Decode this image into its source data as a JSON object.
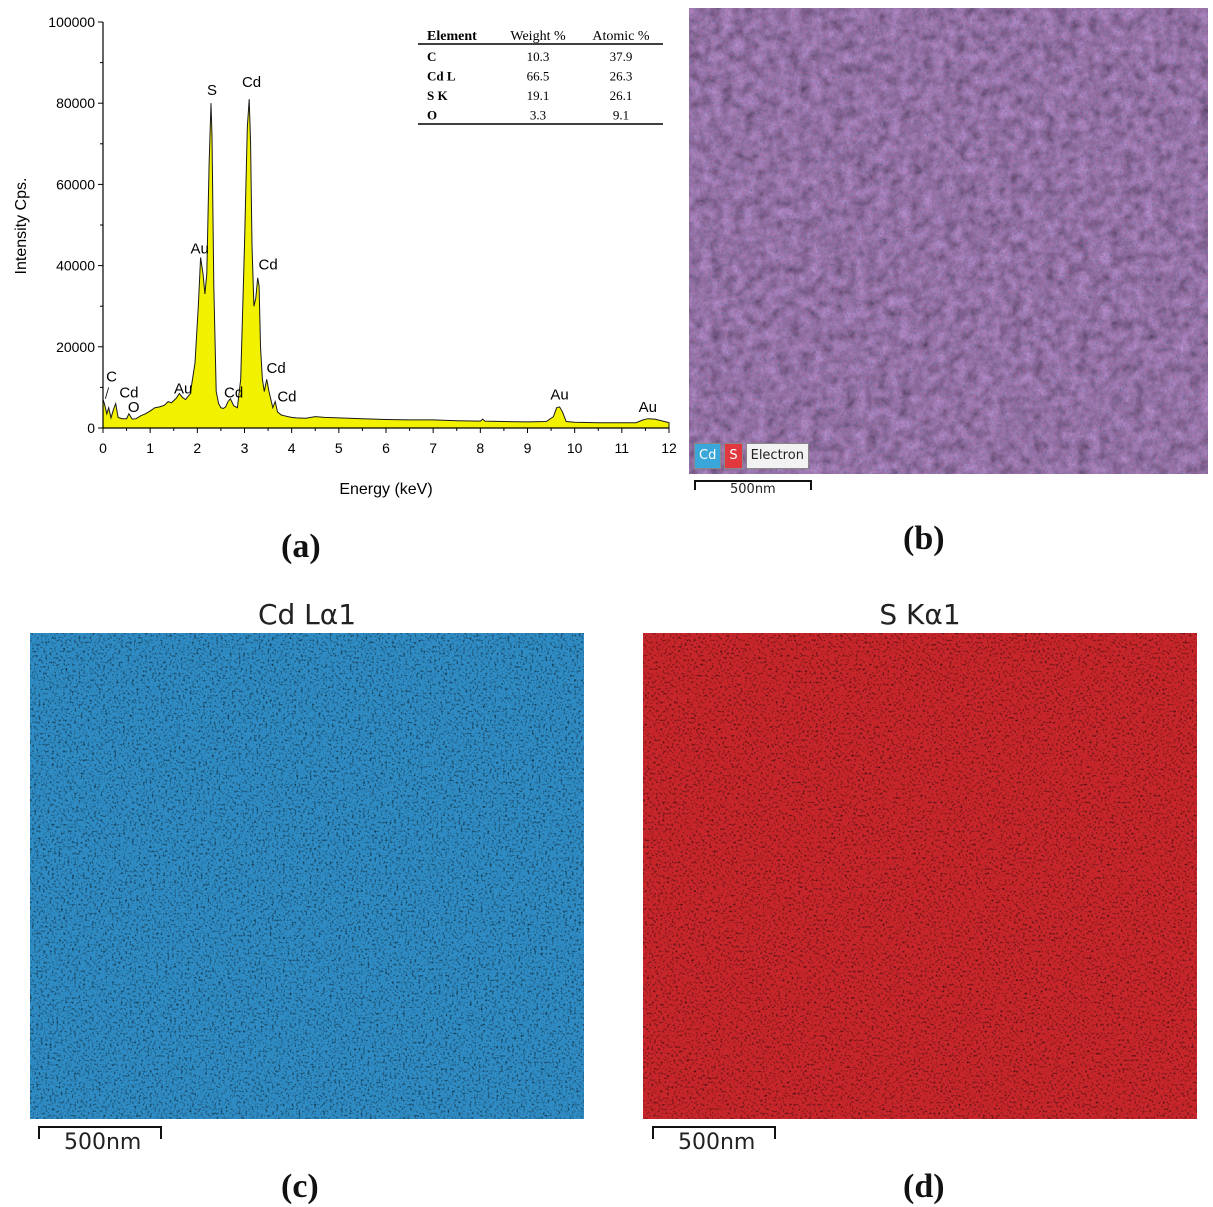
{
  "panel_labels": {
    "a": "(a)",
    "b": "(b)",
    "c": "(c)",
    "d": "(d)"
  },
  "chart_data": {
    "type": "line",
    "title": "",
    "xlabel": "Energy (keV)",
    "ylabel": "Intensity Cps.",
    "xlim": [
      0,
      12
    ],
    "ylim": [
      0,
      100000
    ],
    "x_ticks": [
      0,
      1,
      2,
      3,
      4,
      5,
      6,
      7,
      8,
      9,
      10,
      11,
      12
    ],
    "y_ticks": [
      0,
      20000,
      40000,
      60000,
      80000,
      100000
    ],
    "fill_color": "#f2f200",
    "grid": false,
    "series": [
      {
        "x": [
          0,
          0.03,
          0.08,
          0.12,
          0.17,
          0.22,
          0.27,
          0.32,
          0.4,
          0.5,
          0.55,
          0.62,
          0.7,
          0.8,
          0.9,
          1.0,
          1.1,
          1.2,
          1.3,
          1.38,
          1.45,
          1.55,
          1.62,
          1.68,
          1.75,
          1.85,
          1.95,
          2.02,
          2.07,
          2.12,
          2.16,
          2.2,
          2.25,
          2.29,
          2.31,
          2.35,
          2.4,
          2.45,
          2.5,
          2.55,
          2.6,
          2.65,
          2.7,
          2.77,
          2.85,
          2.92,
          3.0,
          3.06,
          3.1,
          3.13,
          3.16,
          3.2,
          3.24,
          3.28,
          3.31,
          3.34,
          3.38,
          3.42,
          3.47,
          3.52,
          3.56,
          3.6,
          3.65,
          3.7,
          3.78,
          3.85,
          3.92,
          4.0,
          4.1,
          4.3,
          4.5,
          4.7,
          5.0,
          5.5,
          6.0,
          6.5,
          7.0,
          7.5,
          8.0,
          8.05,
          8.1,
          8.5,
          9.0,
          9.4,
          9.55,
          9.62,
          9.68,
          9.74,
          9.82,
          10.0,
          10.5,
          11.0,
          11.3,
          11.45,
          11.55,
          11.7,
          12.0
        ],
        "y": [
          7000,
          6000,
          3500,
          5000,
          2500,
          4500,
          6000,
          2600,
          2300,
          2300,
          3500,
          2200,
          2300,
          3000,
          3500,
          4200,
          5000,
          5200,
          5600,
          6500,
          6200,
          7300,
          8500,
          7600,
          7000,
          8500,
          16000,
          30000,
          42000,
          38000,
          33000,
          38000,
          65000,
          80000,
          72000,
          35000,
          9000,
          6000,
          5000,
          4800,
          5200,
          6500,
          7200,
          5500,
          5000,
          12000,
          45000,
          74000,
          81000,
          70000,
          45000,
          30000,
          32000,
          37000,
          35000,
          20000,
          12000,
          9000,
          12000,
          9000,
          7000,
          5000,
          6500,
          4000,
          3200,
          3000,
          2800,
          2600,
          2500,
          2400,
          2800,
          2600,
          2500,
          2300,
          2100,
          2000,
          2000,
          1800,
          1700,
          2200,
          1700,
          1600,
          1500,
          1600,
          2800,
          5000,
          5200,
          4000,
          1600,
          1400,
          1300,
          1300,
          1300,
          2000,
          2300,
          2200,
          1300
        ]
      }
    ],
    "peak_labels": [
      {
        "text": "C",
        "x": 0.18,
        "y": 11500
      },
      {
        "text": "Cd",
        "x": 0.55,
        "y": 7500
      },
      {
        "text": "O",
        "x": 0.65,
        "y": 4000
      },
      {
        "text": "Au",
        "x": 1.7,
        "y": 8500
      },
      {
        "text": "Au",
        "x": 2.05,
        "y": 43000
      },
      {
        "text": "S",
        "x": 2.31,
        "y": 82000
      },
      {
        "text": "Cd",
        "x": 3.15,
        "y": 84000
      },
      {
        "text": "Cd",
        "x": 3.5,
        "y": 39000
      },
      {
        "text": "Cd",
        "x": 2.77,
        "y": 7500
      },
      {
        "text": "Cd",
        "x": 3.67,
        "y": 13500
      },
      {
        "text": "Cd",
        "x": 3.9,
        "y": 6500
      },
      {
        "text": "Au",
        "x": 9.68,
        "y": 7000
      },
      {
        "text": "Au",
        "x": 11.55,
        "y": 4000
      }
    ],
    "table": {
      "columns": [
        "Element",
        "Weight %",
        "Atomic %"
      ],
      "rows": [
        [
          "C",
          "10.3",
          "37.9"
        ],
        [
          "Cd L",
          "66.5",
          "26.3"
        ],
        [
          "S K",
          "19.1",
          "26.1"
        ],
        [
          "O",
          "3.3",
          "9.1"
        ]
      ]
    }
  },
  "panel_b": {
    "legend": [
      "Cd",
      "S",
      "Electron"
    ],
    "legend_colors": [
      "#3aa6d9",
      "#e0383e",
      "#f2f2f2"
    ],
    "scale": "500nm"
  },
  "panel_c": {
    "title": "Cd Lα1",
    "scale": "500nm",
    "color": "#2f8cc4"
  },
  "panel_d": {
    "title": "S Kα1",
    "scale": "500nm",
    "color": "#c9262b"
  }
}
